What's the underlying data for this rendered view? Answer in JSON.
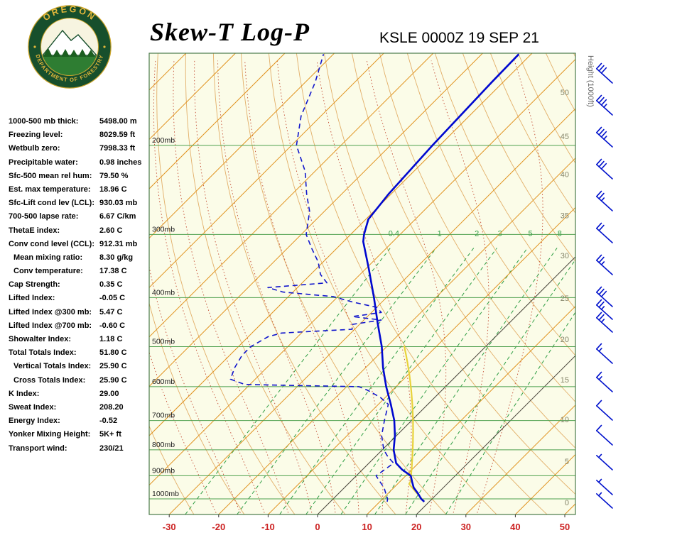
{
  "header": {
    "title": "Skew-T Log-P",
    "station": "KSLE 0000Z 19 SEP 21"
  },
  "logo": {
    "org_top": "OREGON",
    "org_bottom": "DEPARTMENT OF FORESTRY"
  },
  "stats": [
    {
      "label": "1000-500 mb thick:",
      "value": "5498.00 m",
      "indent": false
    },
    {
      "label": "Freezing level:",
      "value": "8029.59 ft",
      "indent": false
    },
    {
      "label": "Wetbulb zero:",
      "value": "7998.33 ft",
      "indent": false
    },
    {
      "label": "Precipitable water:",
      "value": "0.98 inches",
      "indent": false
    },
    {
      "label": "Sfc-500 mean rel hum:",
      "value": "79.50 %",
      "indent": false
    },
    {
      "label": "Est. max temperature:",
      "value": "18.96 C",
      "indent": false
    },
    {
      "label": "Sfc-Lift cond lev (LCL):",
      "value": "930.03 mb",
      "indent": false
    },
    {
      "label": "700-500 lapse rate:",
      "value": "6.67 C/km",
      "indent": false
    },
    {
      "label": "ThetaE index:",
      "value": "2.60 C",
      "indent": false
    },
    {
      "label": "Conv cond level (CCL):",
      "value": "912.31 mb",
      "indent": false
    },
    {
      "label": "Mean mixing ratio:",
      "value": "8.30 g/kg",
      "indent": true
    },
    {
      "label": "Conv temperature:",
      "value": "17.38 C",
      "indent": true
    },
    {
      "label": "Cap Strength:",
      "value": "0.35 C",
      "indent": false
    },
    {
      "label": "Lifted Index:",
      "value": "-0.05 C",
      "indent": false
    },
    {
      "label": "Lifted Index @300 mb:",
      "value": "5.47 C",
      "indent": false
    },
    {
      "label": "Lifted Index @700 mb:",
      "value": "-0.60 C",
      "indent": false
    },
    {
      "label": "Showalter Index:",
      "value": "1.18 C",
      "indent": false
    },
    {
      "label": "Total Totals Index:",
      "value": "51.80 C",
      "indent": false
    },
    {
      "label": "Vertical Totals Index:",
      "value": "25.90 C",
      "indent": true
    },
    {
      "label": "Cross Totals Index:",
      "value": "25.90 C",
      "indent": true
    },
    {
      "label": "K Index:",
      "value": "29.00",
      "indent": false
    },
    {
      "label": "Sweat Index:",
      "value": "208.20",
      "indent": false
    },
    {
      "label": "Energy Index:",
      "value": "-0.52",
      "indent": false
    },
    {
      "label": "Yonker Mixing Height:",
      "value": "5K+ ft",
      "indent": false
    },
    {
      "label": "Transport wind:",
      "value": "230/21",
      "indent": false
    }
  ],
  "chart_data": {
    "type": "line",
    "title": "Skew-T Log-P sounding",
    "station_label": "KSLE 0000Z 19 SEP 21",
    "x_axis": {
      "unit": "C",
      "ticks": [
        -30,
        -20,
        -10,
        0,
        10,
        20,
        30,
        40,
        50
      ],
      "label_color": "#cc2222"
    },
    "pressure_levels_mb": [
      200,
      300,
      400,
      500,
      600,
      700,
      800,
      900,
      1000
    ],
    "pressure_range_mb": [
      1073,
      131
    ],
    "height_axis_title": "Height (1000ft)",
    "height_labels": [
      {
        "label": "50",
        "p": 157
      },
      {
        "label": "45",
        "p": 192
      },
      {
        "label": "40",
        "p": 228
      },
      {
        "label": "35",
        "p": 275
      },
      {
        "label": "30",
        "p": 330
      },
      {
        "label": "25",
        "p": 401
      },
      {
        "label": "20",
        "p": 483
      },
      {
        "label": "15",
        "p": 581
      },
      {
        "label": "10",
        "p": 696
      },
      {
        "label": "5",
        "p": 843
      },
      {
        "label": "0",
        "p": 1016
      }
    ],
    "isotherm_step_c": 10,
    "highlighted_isotherms_c": [
      0,
      20
    ],
    "mixing_ratio_lines_gkg": [
      0.4,
      1,
      2,
      3,
      5,
      8,
      12,
      20
    ],
    "mixing_ratio_labels": [
      "0.4",
      "1",
      "2",
      "3",
      "5",
      "8"
    ],
    "colors": {
      "temperature": "#0008cf",
      "dewpoint": "#1116cc",
      "parcel": "#e8d23a",
      "isotherm": "#e0921e",
      "dry_adiabat": "#e2ae68",
      "moist_adiabat": "#c34a32",
      "mixing_ratio": "#2f9e44",
      "pressure_line": "#4ea04e",
      "background": "#fbfce8",
      "x_labels": "#cc2222",
      "wind_barb": "#0011cc"
    },
    "series": [
      {
        "name": "temperature",
        "color": "#0008cf",
        "style": "solid",
        "points": [
          [
            1013,
            19
          ],
          [
            1000,
            17.8
          ],
          [
            975,
            16
          ],
          [
            950,
            14
          ],
          [
            925,
            12.5
          ],
          [
            900,
            11
          ],
          [
            875,
            8
          ],
          [
            850,
            5.5
          ],
          [
            800,
            2.3
          ],
          [
            750,
            -0.3
          ],
          [
            700,
            -3.5
          ],
          [
            650,
            -7.5
          ],
          [
            600,
            -12
          ],
          [
            550,
            -16.5
          ],
          [
            500,
            -21
          ],
          [
            450,
            -26.5
          ],
          [
            400,
            -32.5
          ],
          [
            350,
            -39.5
          ],
          [
            310,
            -46
          ],
          [
            300,
            -47.3
          ],
          [
            280,
            -49.5
          ],
          [
            250,
            -50.5
          ],
          [
            200,
            -51.5
          ],
          [
            150,
            -52.3
          ],
          [
            132,
            -52.5
          ]
        ]
      },
      {
        "name": "dewpoint",
        "color": "#1116cc",
        "style": "dashed",
        "points": [
          [
            1013,
            11.5
          ],
          [
            1000,
            11
          ],
          [
            975,
            9.5
          ],
          [
            950,
            8
          ],
          [
            925,
            6
          ],
          [
            900,
            4
          ],
          [
            875,
            4.5
          ],
          [
            850,
            5
          ],
          [
            825,
            2.5
          ],
          [
            800,
            0.3
          ],
          [
            750,
            -3
          ],
          [
            700,
            -5.5
          ],
          [
            650,
            -8
          ],
          [
            630,
            -11
          ],
          [
            610,
            -15
          ],
          [
            600,
            -17.5
          ],
          [
            597,
            -30
          ],
          [
            594,
            -41
          ],
          [
            580,
            -45
          ],
          [
            550,
            -46.5
          ],
          [
            520,
            -47.5
          ],
          [
            500,
            -47.5
          ],
          [
            478,
            -46
          ],
          [
            470,
            -44
          ],
          [
            462,
            -30.5
          ],
          [
            452,
            -31.5
          ],
          [
            443,
            -26.5
          ],
          [
            436,
            -33
          ],
          [
            428,
            -28
          ],
          [
            418,
            -30
          ],
          [
            408,
            -36
          ],
          [
            398,
            -41
          ],
          [
            390,
            -52
          ],
          [
            382,
            -56
          ],
          [
            374,
            -45
          ],
          [
            360,
            -48
          ],
          [
            340,
            -51
          ],
          [
            320,
            -55
          ],
          [
            300,
            -59
          ],
          [
            270,
            -63
          ],
          [
            250,
            -67
          ],
          [
            225,
            -72
          ],
          [
            200,
            -79
          ],
          [
            175,
            -84
          ],
          [
            150,
            -88
          ],
          [
            132,
            -92
          ]
        ]
      }
    ],
    "parcel": {
      "surface_p": 1013,
      "surface_t": 19.0,
      "lcl_p": 930,
      "top_p": 500
    },
    "wind_barbs": [
      {
        "y": 716,
        "speed": 3
      },
      {
        "y": 697,
        "speed": 5
      },
      {
        "y": 662,
        "speed": 5
      },
      {
        "y": 627,
        "speed": 10
      },
      {
        "y": 592,
        "speed": 10
      },
      {
        "y": 552,
        "speed": 15
      },
      {
        "y": 512,
        "speed": 15
      },
      {
        "y": 468,
        "speed": 25
      },
      {
        "y": 450,
        "speed": 25
      },
      {
        "y": 432,
        "speed": 30
      },
      {
        "y": 387,
        "speed": 25
      },
      {
        "y": 342,
        "speed": 20
      },
      {
        "y": 297,
        "speed": 25
      },
      {
        "y": 252,
        "speed": 30
      },
      {
        "y": 207,
        "speed": 35
      },
      {
        "y": 162,
        "speed": 35
      },
      {
        "y": 117,
        "speed": 30
      }
    ]
  }
}
